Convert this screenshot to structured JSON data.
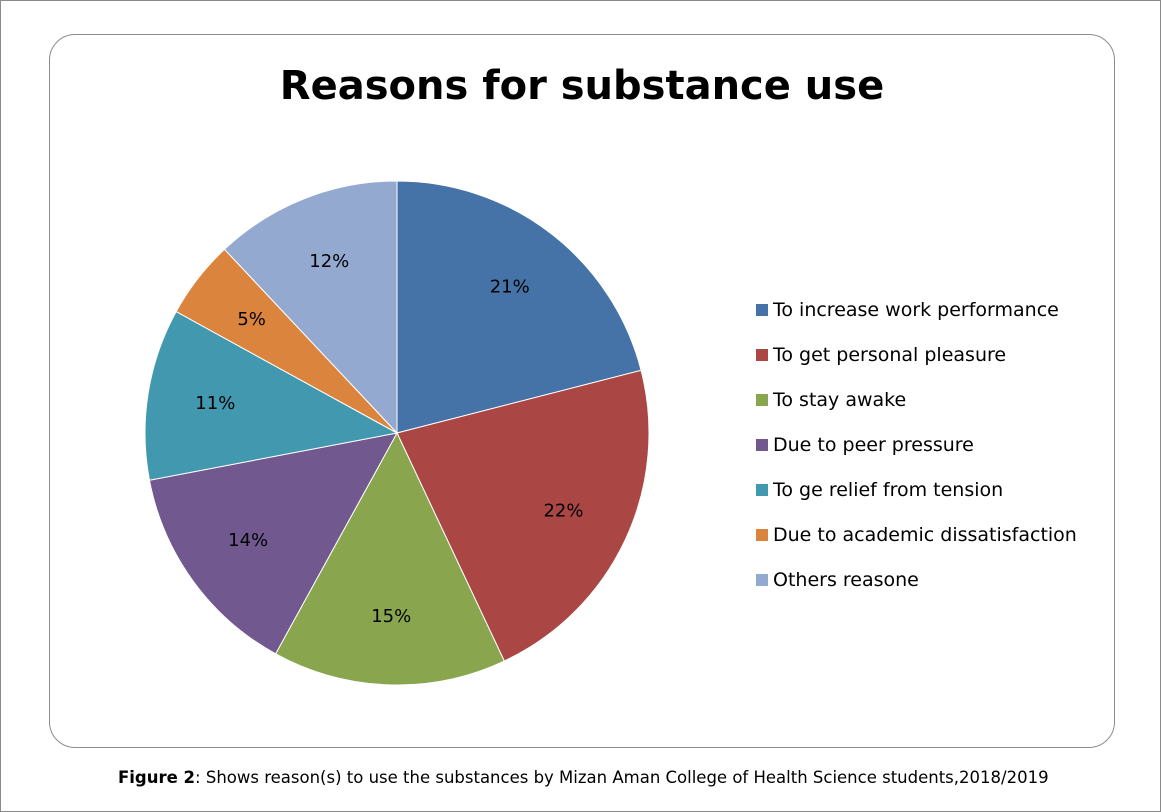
{
  "chart_data": {
    "type": "pie",
    "title": "Reasons for substance use",
    "categories": [
      "To increase work performance",
      "To get personal pleasure",
      "To stay awake",
      "Due to peer pressure",
      "To ge relief from tension",
      "Due to academic dissatisfaction",
      "Others reasone"
    ],
    "values": [
      21,
      22,
      15,
      14,
      11,
      5,
      12
    ],
    "data_labels": [
      "21%",
      "22%",
      "15%",
      "14%",
      "11%",
      "5%",
      "12%"
    ],
    "colors": [
      "#4572A7",
      "#AA4643",
      "#89A54E",
      "#71588F",
      "#4198AF",
      "#DB843D",
      "#93A9CF"
    ],
    "legend_position": "right"
  },
  "caption": {
    "label": "Figure 2",
    "text": ": Shows reason(s) to use the substances by Mizan Aman College of Health Science students,2018/2019"
  }
}
